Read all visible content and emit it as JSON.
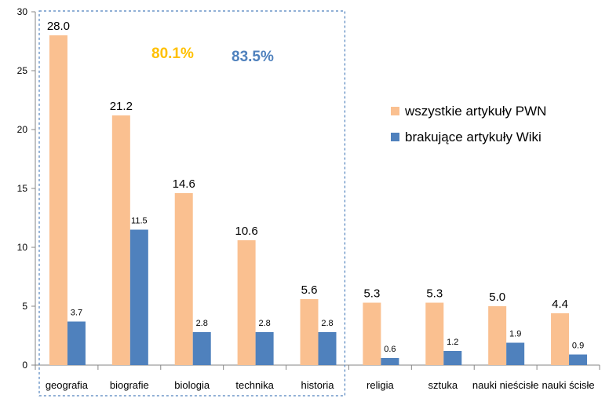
{
  "chart_data": {
    "type": "bar",
    "categories": [
      "geografia",
      "biografie",
      "biologia",
      "technika",
      "historia",
      "religia",
      "sztuka",
      "nauki nieścisłe",
      "nauki ścisłe"
    ],
    "series": [
      {
        "name": "wszystkie artykuły PWN",
        "color": "#FAC090",
        "values": [
          28.0,
          21.2,
          14.6,
          10.6,
          5.6,
          5.3,
          5.3,
          5.0,
          4.4
        ],
        "labels": [
          "28.0",
          "21.2",
          "14.6",
          "10.6",
          "5.6",
          "5.3",
          "5.3",
          "5.0",
          "4.4"
        ]
      },
      {
        "name": "brakujące artykuły Wiki",
        "color": "#4F81BD",
        "values": [
          3.7,
          11.5,
          2.8,
          2.8,
          2.8,
          0.6,
          1.2,
          1.9,
          0.9
        ],
        "labels": [
          "3.7",
          "11.5",
          "2.8",
          "2.8",
          "2.8",
          "0.6",
          "1.2",
          "1.9",
          "0.9"
        ]
      }
    ],
    "ylim": [
      0,
      30
    ],
    "yticks": [
      0,
      5,
      10,
      15,
      20,
      25,
      30
    ],
    "legend_position": "right",
    "grid": false,
    "annotations": [
      {
        "text": "80.1%",
        "color": "#FFC000"
      },
      {
        "text": "83.5%",
        "color": "#4F81BD"
      }
    ],
    "highlight_box": {
      "style": "dashed",
      "color": "#4F81BD",
      "covers_categories": [
        "geografia",
        "biografie",
        "biologia",
        "technika",
        "historia"
      ]
    }
  }
}
